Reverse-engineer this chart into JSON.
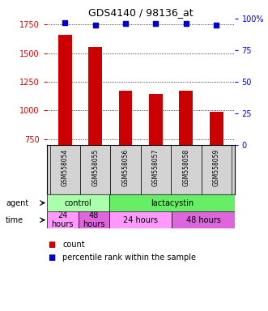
{
  "title": "GDS4140 / 98136_at",
  "samples": [
    "GSM558054",
    "GSM558055",
    "GSM558056",
    "GSM558057",
    "GSM558058",
    "GSM558059"
  ],
  "counts": [
    1660,
    1550,
    1175,
    1145,
    1175,
    990
  ],
  "percentiles": [
    97,
    95,
    96,
    96,
    96,
    95
  ],
  "bar_color": "#cc0000",
  "dot_color": "#0000cc",
  "ylim_left": [
    700,
    1800
  ],
  "yticks_left": [
    750,
    1000,
    1250,
    1500,
    1750
  ],
  "ylim_right": [
    0,
    100
  ],
  "yticks_right": [
    0,
    25,
    50,
    75,
    100
  ],
  "agent_row": [
    {
      "label": "control",
      "start": 0,
      "end": 2,
      "color": "#aaffaa"
    },
    {
      "label": "lactacystin",
      "start": 2,
      "end": 6,
      "color": "#66ee66"
    }
  ],
  "time_row": [
    {
      "label": "24\nhours",
      "start": 0,
      "end": 1,
      "color": "#ff99ff"
    },
    {
      "label": "48\nhours",
      "start": 1,
      "end": 2,
      "color": "#dd66dd"
    },
    {
      "label": "24 hours",
      "start": 2,
      "end": 4,
      "color": "#ff99ff"
    },
    {
      "label": "48 hours",
      "start": 4,
      "end": 6,
      "color": "#dd66dd"
    }
  ],
  "legend_count_color": "#cc0000",
  "legend_pct_color": "#0000cc",
  "background_color": "#ffffff",
  "plot_bg_color": "#ffffff",
  "sample_bg_color": "#d3d3d3"
}
